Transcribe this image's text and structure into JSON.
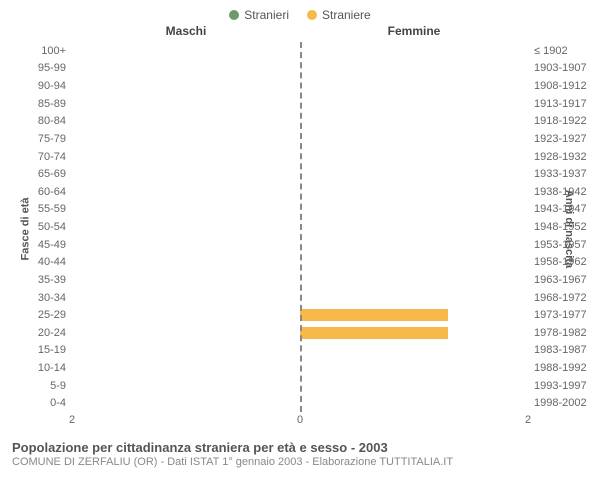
{
  "legend": {
    "male": {
      "label": "Stranieri",
      "color": "#6b9b6b"
    },
    "female": {
      "label": "Straniere",
      "color": "#f6b94a"
    }
  },
  "header": {
    "left": "Maschi",
    "right": "Femmine"
  },
  "axes": {
    "y_left_title": "Fasce di età",
    "y_right_title": "Anni di nascita",
    "x_min": 0,
    "x_max": 2,
    "x_ticks_left": [
      "2",
      "0"
    ],
    "x_ticks_right": [
      "0",
      "2"
    ]
  },
  "chart": {
    "type": "population-pyramid",
    "background_color": "#ffffff",
    "bar_color_male": "#6b9b6b",
    "bar_color_female": "#f6b94a",
    "rows": [
      {
        "age": "100+",
        "birth": "≤ 1902",
        "m": 0,
        "f": 0
      },
      {
        "age": "95-99",
        "birth": "1903-1907",
        "m": 0,
        "f": 0
      },
      {
        "age": "90-94",
        "birth": "1908-1912",
        "m": 0,
        "f": 0
      },
      {
        "age": "85-89",
        "birth": "1913-1917",
        "m": 0,
        "f": 0
      },
      {
        "age": "80-84",
        "birth": "1918-1922",
        "m": 0,
        "f": 0
      },
      {
        "age": "75-79",
        "birth": "1923-1927",
        "m": 0,
        "f": 0
      },
      {
        "age": "70-74",
        "birth": "1928-1932",
        "m": 0,
        "f": 0
      },
      {
        "age": "65-69",
        "birth": "1933-1937",
        "m": 0,
        "f": 0
      },
      {
        "age": "60-64",
        "birth": "1938-1942",
        "m": 0,
        "f": 0
      },
      {
        "age": "55-59",
        "birth": "1943-1947",
        "m": 0,
        "f": 0
      },
      {
        "age": "50-54",
        "birth": "1948-1952",
        "m": 0,
        "f": 0
      },
      {
        "age": "45-49",
        "birth": "1953-1957",
        "m": 0,
        "f": 0
      },
      {
        "age": "40-44",
        "birth": "1958-1962",
        "m": 0,
        "f": 0
      },
      {
        "age": "35-39",
        "birth": "1963-1967",
        "m": 0,
        "f": 0
      },
      {
        "age": "30-34",
        "birth": "1968-1972",
        "m": 0,
        "f": 0
      },
      {
        "age": "25-29",
        "birth": "1973-1977",
        "m": 0,
        "f": 1.3
      },
      {
        "age": "20-24",
        "birth": "1978-1982",
        "m": 0,
        "f": 1.3
      },
      {
        "age": "15-19",
        "birth": "1983-1987",
        "m": 0,
        "f": 0
      },
      {
        "age": "10-14",
        "birth": "1988-1992",
        "m": 0,
        "f": 0
      },
      {
        "age": "5-9",
        "birth": "1993-1997",
        "m": 0,
        "f": 0
      },
      {
        "age": "0-4",
        "birth": "1998-2002",
        "m": 0,
        "f": 0
      }
    ]
  },
  "footer": {
    "title": "Popolazione per cittadinanza straniera per età e sesso - 2003",
    "sub": "COMUNE DI ZERFALIU (OR) - Dati ISTAT 1° gennaio 2003 - Elaborazione TUTTITALIA.IT"
  }
}
